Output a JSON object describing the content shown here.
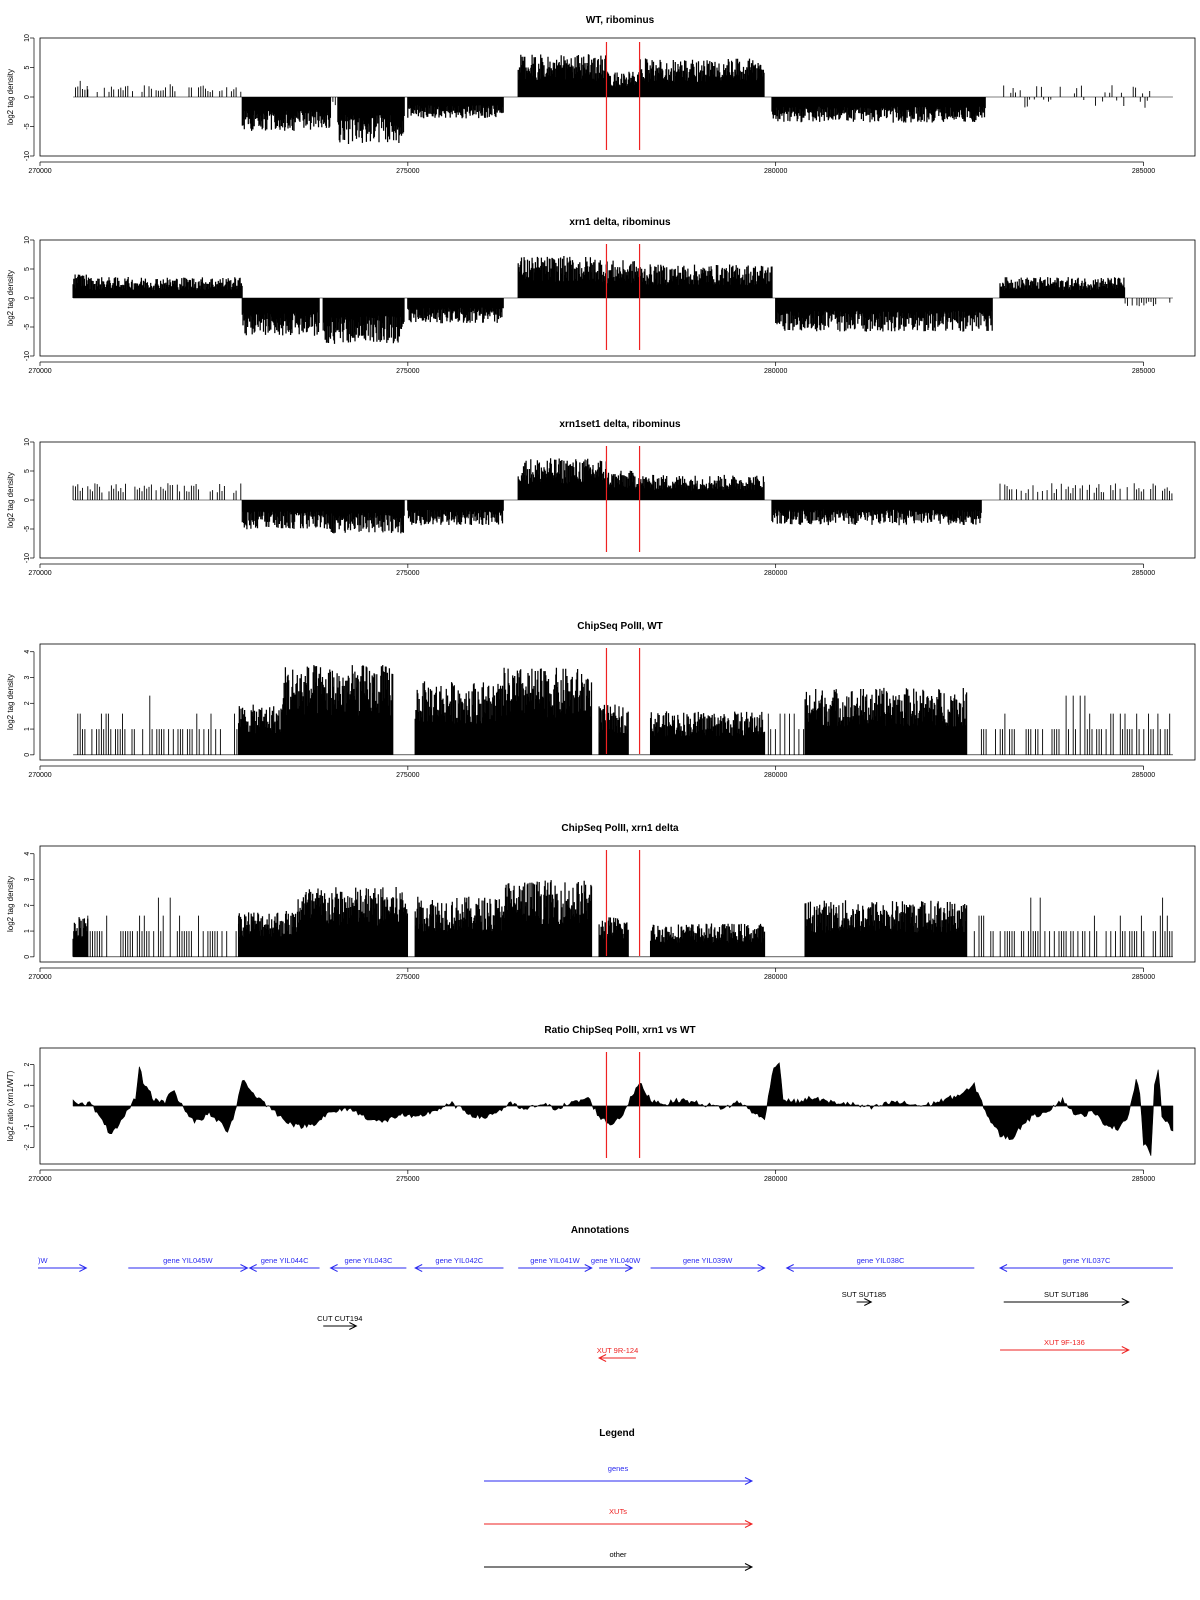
{
  "colors": {
    "gene": "#2a2af0",
    "xut": "#ee2222",
    "other": "#000000",
    "marker": "#ee2222",
    "signal": "#000000"
  },
  "x_axis": {
    "xlim": [
      270000,
      285700
    ],
    "ticks": [
      "270000",
      "275000",
      "280000",
      "285000"
    ],
    "tick_values": [
      270000,
      275000,
      280000,
      285000
    ]
  },
  "marker_positions": [
    277700,
    278150
  ],
  "chart_data": [
    {
      "type": "bar",
      "title": "WT, ribominus",
      "ylabel": "log2 tag density",
      "ylim": [
        -10,
        10
      ],
      "yticks": [
        "10",
        "5",
        "0",
        "-5",
        "-10"
      ],
      "ytick_values": [
        10,
        5,
        0,
        -5,
        -10
      ],
      "markers": true,
      "segments": [
        {
          "start": 270450,
          "end": 270650,
          "mean": 2,
          "sign": 1,
          "sparse": true
        },
        {
          "start": 270650,
          "end": 272750,
          "mean": 1.5,
          "sign": 1,
          "sparse": true
        },
        {
          "start": 272750,
          "end": 273950,
          "mean": -4,
          "sign": -1
        },
        {
          "start": 273950,
          "end": 274050,
          "mean": -1,
          "sign": -1,
          "sparse": true
        },
        {
          "start": 274050,
          "end": 274950,
          "mean": -5.5,
          "sign": -1
        },
        {
          "start": 275000,
          "end": 276300,
          "mean": -2.5,
          "sign": -1
        },
        {
          "start": 276500,
          "end": 277700,
          "mean": 5,
          "sign": 1
        },
        {
          "start": 277700,
          "end": 278150,
          "mean": 3,
          "sign": 1
        },
        {
          "start": 278150,
          "end": 279850,
          "mean": 4.5,
          "sign": 1
        },
        {
          "start": 279950,
          "end": 282850,
          "mean": -3,
          "sign": -1
        },
        {
          "start": 283100,
          "end": 285100,
          "mean": 1,
          "sign": 0,
          "sparse": true
        }
      ]
    },
    {
      "type": "bar",
      "title": "xrn1 delta, ribominus",
      "ylabel": "log2 tag density",
      "ylim": [
        -10,
        10
      ],
      "yticks": [
        "10",
        "5",
        "0",
        "-5",
        "-10"
      ],
      "ytick_values": [
        10,
        5,
        0,
        -5,
        -10
      ],
      "markers": true,
      "segments": [
        {
          "start": 270450,
          "end": 270650,
          "mean": 3,
          "sign": 1
        },
        {
          "start": 270650,
          "end": 272750,
          "mean": 2.5,
          "sign": 1
        },
        {
          "start": 272750,
          "end": 273800,
          "mean": -4.5,
          "sign": -1
        },
        {
          "start": 273850,
          "end": 274950,
          "mean": -5.5,
          "sign": -1
        },
        {
          "start": 275000,
          "end": 276300,
          "mean": -3,
          "sign": -1
        },
        {
          "start": 276500,
          "end": 277700,
          "mean": 5,
          "sign": 1
        },
        {
          "start": 277700,
          "end": 278150,
          "mean": 4.5,
          "sign": 1
        },
        {
          "start": 278150,
          "end": 279950,
          "mean": 4,
          "sign": 1
        },
        {
          "start": 280000,
          "end": 282950,
          "mean": -4,
          "sign": -1
        },
        {
          "start": 283050,
          "end": 284750,
          "mean": 2.5,
          "sign": 1
        },
        {
          "start": 284750,
          "end": 285400,
          "mean": -1,
          "sign": -1,
          "sparse": true
        }
      ]
    },
    {
      "type": "bar",
      "title": "xrn1set1 delta, ribominus",
      "ylabel": "log2 tag density",
      "ylim": [
        -10,
        10
      ],
      "yticks": [
        "10",
        "5",
        "0",
        "-5",
        "-10"
      ],
      "ytick_values": [
        10,
        5,
        0,
        -5,
        -10
      ],
      "markers": true,
      "segments": [
        {
          "start": 270450,
          "end": 270650,
          "mean": 2,
          "sign": 1,
          "sparse": true
        },
        {
          "start": 270650,
          "end": 272750,
          "mean": 2,
          "sign": 1,
          "sparse": true
        },
        {
          "start": 272750,
          "end": 273950,
          "mean": -3.5,
          "sign": -1
        },
        {
          "start": 273950,
          "end": 274950,
          "mean": -4,
          "sign": -1
        },
        {
          "start": 275000,
          "end": 276300,
          "mean": -3,
          "sign": -1
        },
        {
          "start": 276500,
          "end": 277700,
          "mean": 5,
          "sign": 1
        },
        {
          "start": 277700,
          "end": 278150,
          "mean": 3.5,
          "sign": 1
        },
        {
          "start": 278150,
          "end": 279850,
          "mean": 3,
          "sign": 1
        },
        {
          "start": 279950,
          "end": 282800,
          "mean": -3,
          "sign": -1
        },
        {
          "start": 283050,
          "end": 285400,
          "mean": 2,
          "sign": 1,
          "sparse": true
        }
      ]
    },
    {
      "type": "bar",
      "title": "ChipSeq PolII, WT",
      "ylabel": "log2 tag density",
      "ylim": [
        -0.2,
        4.3
      ],
      "yticks": [
        "4",
        "3",
        "2",
        "1",
        "0"
      ],
      "ytick_values": [
        4,
        3,
        2,
        1,
        0
      ],
      "markers": true,
      "segments": [
        {
          "start": 270450,
          "end": 271300,
          "mean": 1,
          "sign": 1,
          "sparse": true
        },
        {
          "start": 271300,
          "end": 272700,
          "mean": 1,
          "sign": 1,
          "sparse": true
        },
        {
          "start": 272700,
          "end": 273300,
          "mean": 1.5,
          "sign": 1
        },
        {
          "start": 273300,
          "end": 274800,
          "mean": 2.7,
          "sign": 1
        },
        {
          "start": 275100,
          "end": 276300,
          "mean": 2.2,
          "sign": 1
        },
        {
          "start": 276300,
          "end": 277500,
          "mean": 2.6,
          "sign": 1
        },
        {
          "start": 277600,
          "end": 278000,
          "mean": 1.5,
          "sign": 1
        },
        {
          "start": 278300,
          "end": 279850,
          "mean": 1.3,
          "sign": 1
        },
        {
          "start": 279900,
          "end": 280400,
          "mean": 1,
          "sign": 1,
          "sparse": true
        },
        {
          "start": 280400,
          "end": 282600,
          "mean": 2,
          "sign": 1
        },
        {
          "start": 282700,
          "end": 285400,
          "mean": 1,
          "sign": 1,
          "sparse": true
        }
      ]
    },
    {
      "type": "bar",
      "title": "ChipSeq PolII, xrn1 delta",
      "ylabel": "log2 tag density",
      "ylim": [
        -0.2,
        4.3
      ],
      "yticks": [
        "4",
        "3",
        "2",
        "1",
        "0"
      ],
      "ytick_values": [
        4,
        3,
        2,
        1,
        0
      ],
      "markers": true,
      "segments": [
        {
          "start": 270450,
          "end": 270650,
          "mean": 1.2,
          "sign": 1
        },
        {
          "start": 270650,
          "end": 272700,
          "mean": 0.5,
          "sign": 1,
          "sparse": true
        },
        {
          "start": 272700,
          "end": 273500,
          "mean": 1.4,
          "sign": 1
        },
        {
          "start": 273500,
          "end": 275000,
          "mean": 2.1,
          "sign": 1
        },
        {
          "start": 275100,
          "end": 276300,
          "mean": 1.8,
          "sign": 1
        },
        {
          "start": 276300,
          "end": 277500,
          "mean": 2.3,
          "sign": 1
        },
        {
          "start": 277600,
          "end": 278000,
          "mean": 1.2,
          "sign": 1
        },
        {
          "start": 278300,
          "end": 279850,
          "mean": 1,
          "sign": 1
        },
        {
          "start": 280400,
          "end": 282600,
          "mean": 1.7,
          "sign": 1
        },
        {
          "start": 282700,
          "end": 285400,
          "mean": 0.6,
          "sign": 1,
          "sparse": true
        }
      ]
    },
    {
      "type": "area",
      "title": "Ratio ChipSeq PolII, xrn1 vs WT",
      "ylabel": "log2 ratio (xrn1/WT)",
      "ylim": [
        -2.8,
        2.8
      ],
      "yticks": [
        "2",
        "1",
        "0",
        "-1",
        "-2"
      ],
      "ytick_values": [
        2,
        1,
        0,
        -1,
        -2
      ],
      "markers": true,
      "profile": [
        [
          270450,
          0.2
        ],
        [
          270700,
          0.1
        ],
        [
          270800,
          -0.5
        ],
        [
          270950,
          -1.3
        ],
        [
          271050,
          -1.1
        ],
        [
          271200,
          -0.2
        ],
        [
          271300,
          0.4
        ],
        [
          271350,
          1.9
        ],
        [
          271400,
          1.2
        ],
        [
          271550,
          0.3
        ],
        [
          271700,
          0.2
        ],
        [
          271800,
          0.8
        ],
        [
          271900,
          0.2
        ],
        [
          272100,
          -0.8
        ],
        [
          272300,
          -0.4
        ],
        [
          272450,
          -0.8
        ],
        [
          272550,
          -1.2
        ],
        [
          272650,
          -0.3
        ],
        [
          272750,
          1.3
        ],
        [
          272900,
          0.6
        ],
        [
          273100,
          0.0
        ],
        [
          273300,
          -0.6
        ],
        [
          273500,
          -1.0
        ],
        [
          273700,
          -0.9
        ],
        [
          273900,
          -0.4
        ],
        [
          274200,
          -0.1
        ],
        [
          274400,
          -0.5
        ],
        [
          274650,
          -0.8
        ],
        [
          274900,
          -0.4
        ],
        [
          275100,
          -0.6
        ],
        [
          275300,
          -0.3
        ],
        [
          275600,
          0.1
        ],
        [
          275800,
          -0.3
        ],
        [
          276000,
          -0.6
        ],
        [
          276200,
          -0.3
        ],
        [
          276400,
          0.1
        ],
        [
          276600,
          -0.2
        ],
        [
          276800,
          0.1
        ],
        [
          277000,
          -0.1
        ],
        [
          277300,
          0.2
        ],
        [
          277450,
          0.4
        ],
        [
          277600,
          -0.5
        ],
        [
          277750,
          -0.9
        ],
        [
          277900,
          -0.5
        ],
        [
          278050,
          0.5
        ],
        [
          278150,
          1.1
        ],
        [
          278300,
          0.3
        ],
        [
          278500,
          0.1
        ],
        [
          278700,
          0.3
        ],
        [
          279000,
          0.1
        ],
        [
          279300,
          -0.1
        ],
        [
          279500,
          0.2
        ],
        [
          279700,
          -0.3
        ],
        [
          279850,
          -0.7
        ],
        [
          279950,
          1.6
        ],
        [
          280050,
          2.2
        ],
        [
          280100,
          0.3
        ],
        [
          280300,
          0.2
        ],
        [
          280500,
          0.4
        ],
        [
          280700,
          0.2
        ],
        [
          281000,
          0.1
        ],
        [
          281300,
          -0.1
        ],
        [
          281600,
          0.2
        ],
        [
          282000,
          0.0
        ],
        [
          282300,
          0.3
        ],
        [
          282550,
          0.6
        ],
        [
          282700,
          1.0
        ],
        [
          282800,
          0.2
        ],
        [
          282900,
          -0.6
        ],
        [
          283050,
          -1.4
        ],
        [
          283200,
          -1.6
        ],
        [
          283400,
          -0.7
        ],
        [
          283700,
          -0.2
        ],
        [
          283900,
          0.3
        ],
        [
          284100,
          -0.5
        ],
        [
          284300,
          -0.3
        ],
        [
          284500,
          -0.9
        ],
        [
          284650,
          -1.1
        ],
        [
          284800,
          -0.4
        ],
        [
          284900,
          1.3
        ],
        [
          284950,
          0.6
        ],
        [
          285000,
          -1.8
        ],
        [
          285100,
          -2.3
        ],
        [
          285150,
          0.9
        ],
        [
          285200,
          1.7
        ],
        [
          285250,
          -0.4
        ],
        [
          285350,
          -0.9
        ],
        [
          285400,
          -1.2
        ]
      ]
    }
  ],
  "annotations": {
    "title": "Annotations",
    "rows": [
      {
        "items": [
          {
            "label": ")W",
            "type": "gene",
            "start": 269870,
            "end": 270630,
            "strand": "+",
            "label_pos": "left"
          },
          {
            "label": "gene YIL045W",
            "type": "gene",
            "start": 271200,
            "end": 272820,
            "strand": "+"
          },
          {
            "label": "gene YIL044C",
            "type": "gene",
            "start": 272850,
            "end": 273800,
            "strand": "-"
          },
          {
            "label": "gene YIL043C",
            "type": "gene",
            "start": 273950,
            "end": 274980,
            "strand": "-"
          },
          {
            "label": "gene YIL042C",
            "type": "gene",
            "start": 275100,
            "end": 276300,
            "strand": "-"
          },
          {
            "label": "gene YIL041W",
            "type": "gene",
            "start": 276500,
            "end": 277500,
            "strand": "+"
          },
          {
            "label": "gene YIL040W",
            "type": "gene",
            "start": 277600,
            "end": 278050,
            "strand": "+"
          },
          {
            "label": "gene YIL039W",
            "type": "gene",
            "start": 278300,
            "end": 279850,
            "strand": "+"
          },
          {
            "label": "gene YIL038C",
            "type": "gene",
            "start": 280150,
            "end": 282700,
            "strand": "-"
          },
          {
            "label": "gene YIL037C",
            "type": "gene",
            "start": 283050,
            "end": 285400,
            "strand": "-"
          }
        ]
      },
      {
        "items": [
          {
            "label": "SUT SUT185",
            "type": "other",
            "start": 281100,
            "end": 281300,
            "strand": "+"
          },
          {
            "label": "SUT SUT186",
            "type": "other",
            "start": 283100,
            "end": 284800,
            "strand": "+"
          }
        ]
      },
      {
        "items": [
          {
            "label": "CUT CUT194",
            "type": "other",
            "start": 273850,
            "end": 274300,
            "strand": "+"
          }
        ]
      },
      {
        "items": [
          {
            "label": "XUT 9F-136",
            "type": "xut",
            "start": 283050,
            "end": 284800,
            "strand": "+"
          }
        ]
      },
      {
        "items": [
          {
            "label": "XUT 9R-124",
            "type": "xut",
            "start": 277600,
            "end": 278100,
            "strand": "-"
          }
        ]
      }
    ]
  },
  "legend": {
    "title": "Legend",
    "items": [
      {
        "label": "genes",
        "type": "gene"
      },
      {
        "label": "XUTs",
        "type": "xut"
      },
      {
        "label": "other",
        "type": "other"
      }
    ]
  }
}
